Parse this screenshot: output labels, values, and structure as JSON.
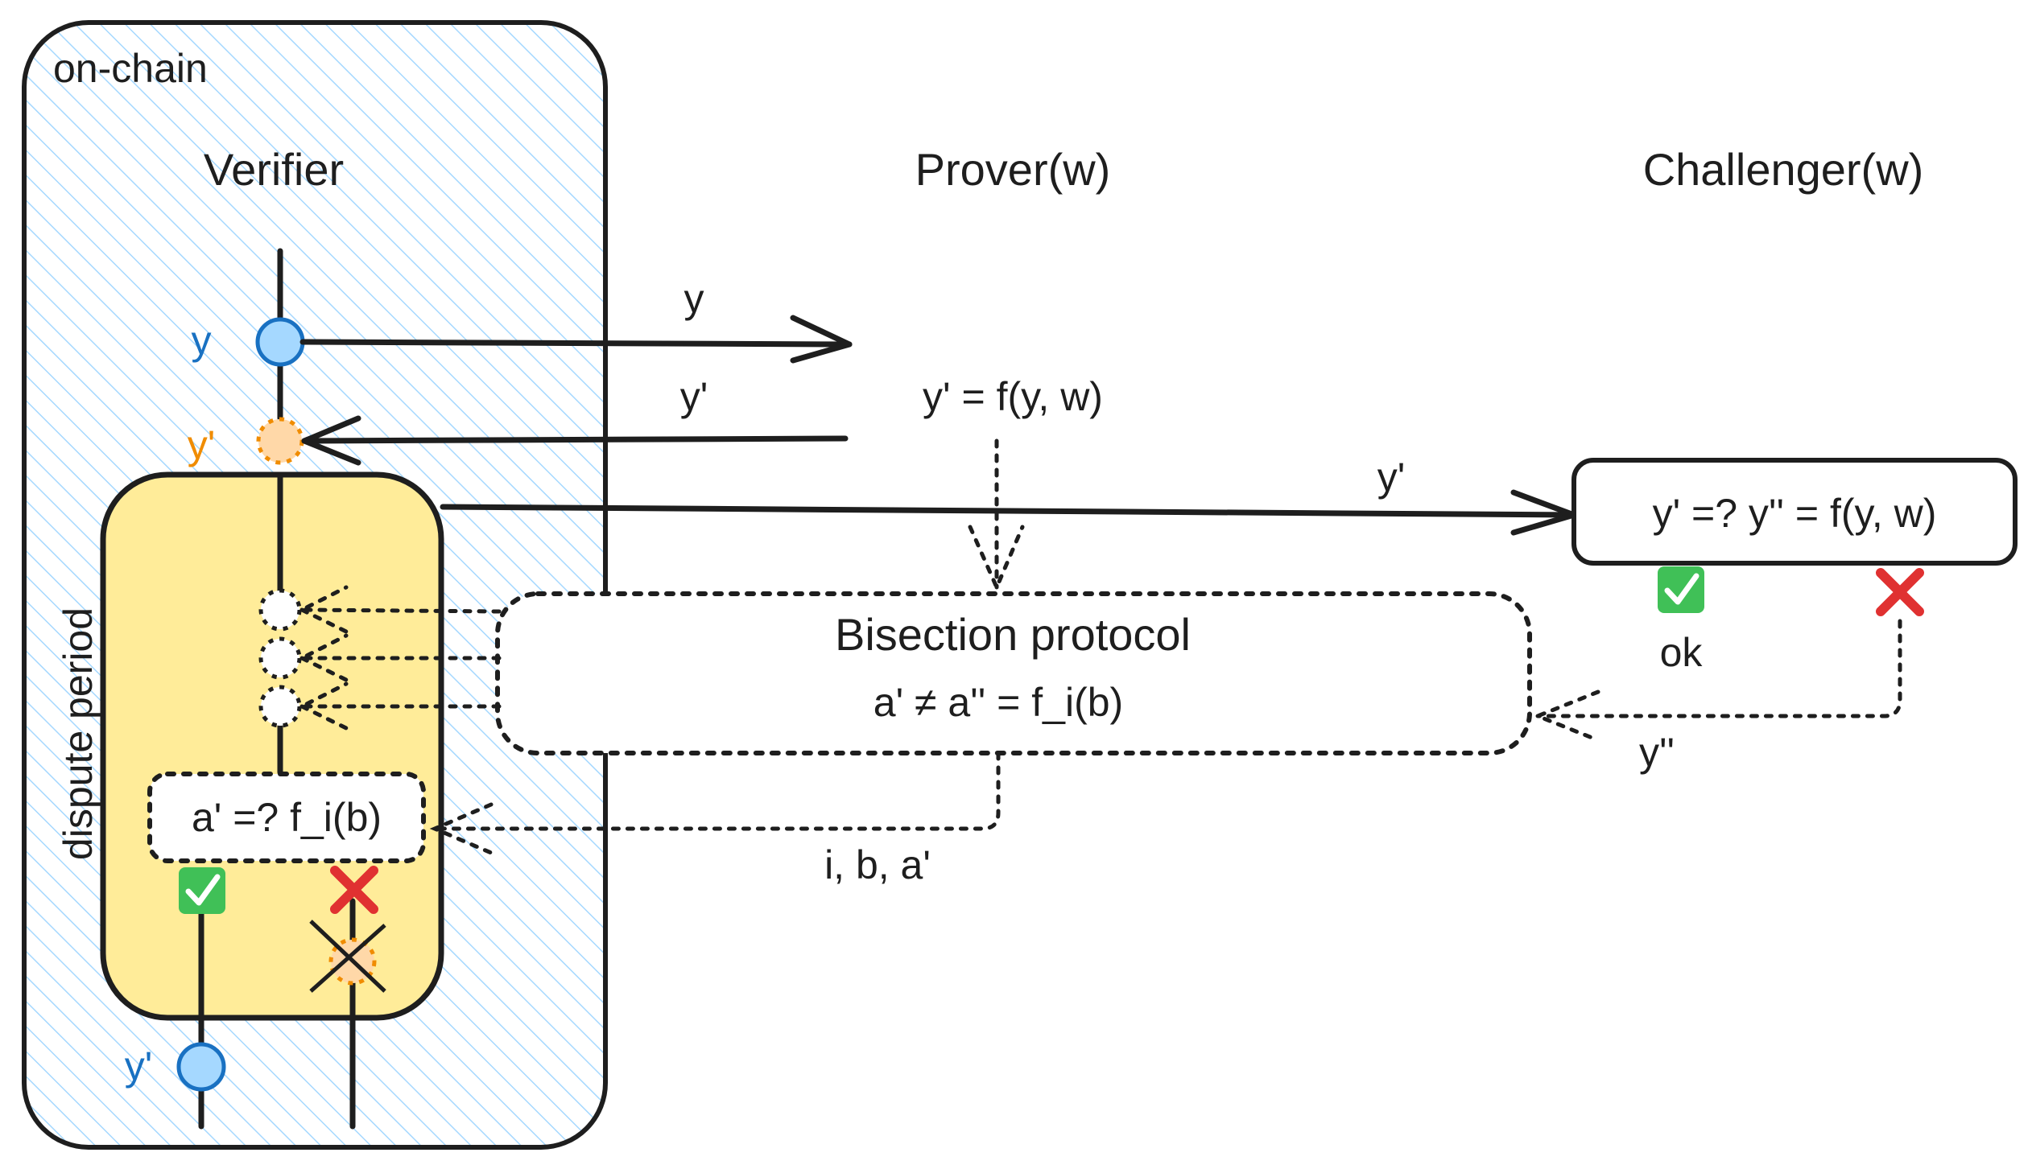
{
  "region": {
    "on_chain_label": "on-chain",
    "dispute_period_label": "dispute period"
  },
  "actors": {
    "verifier": "Verifier",
    "prover": "Prover(w)",
    "challenger": "Challenger(w)"
  },
  "verifier_nodes": {
    "top_value": "y",
    "pending_value": "y'",
    "final_value": "y'"
  },
  "messages": {
    "to_prover": "y",
    "from_prover": "y'",
    "prover_compute": "y' = f(y, w)",
    "to_challenger": "y'",
    "challenger_check": "y' =? y'' = f(y, w)",
    "challenger_ok": "ok",
    "challenger_response": "y''",
    "bisection_title": "Bisection protocol",
    "bisection_claim": "a' ≠ a'' = f_i(b)",
    "bisection_output": "i, b, a'",
    "verifier_check": "a' =? f_i(b)"
  },
  "outcomes": {
    "pass_icon": "check-mark-icon",
    "fail_icon": "cross-mark-icon"
  },
  "colors": {
    "hatch": "#a5d8ff",
    "dispute_fill": "#ffec99",
    "node_blue": "#a5d8ff",
    "node_blue_stroke": "#1971c2",
    "node_orange": "#ffd8a8",
    "node_orange_stroke": "#f08c00",
    "check_green": "#40c057",
    "cross_red": "#e03131",
    "ink": "#1e1e1e"
  }
}
